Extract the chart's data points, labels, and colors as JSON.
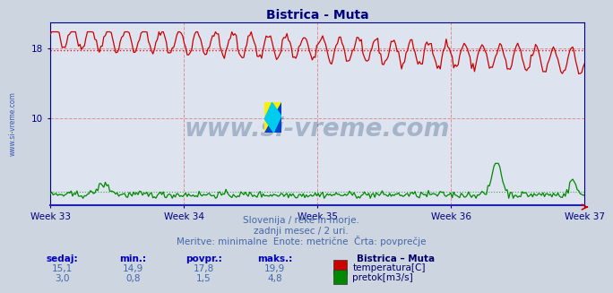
{
  "title": "Bistrica - Muta",
  "title_color": "#000080",
  "bg_color": "#ccd5e0",
  "plot_bg_color": "#dde4f0",
  "grid_color": "#dd8888",
  "avg_temp": 17.8,
  "avg_flow": 1.5,
  "temp_color": "#cc0000",
  "flow_color": "#008800",
  "ylim": [
    0,
    21
  ],
  "n_points": 360,
  "watermark": "www.si-vreme.com",
  "watermark_color": "#1a3a6a",
  "sidebar_text": "www.si-vreme.com",
  "xlabel_weeks": [
    "Week 33",
    "Week 34",
    "Week 35",
    "Week 36",
    "Week 37"
  ],
  "subtitle1": "Slovenija / reke in morje.",
  "subtitle2": "zadnji mesec / 2 uri.",
  "subtitle3": "Meritve: minimalne  Enote: metrične  Črta: povprečje",
  "subtitle_color": "#4466aa",
  "table_label_color": "#0000bb",
  "table_value_color": "#4466aa",
  "table_header_color": "#000066",
  "col_headers": [
    "sedaj:",
    "min.:",
    "povpr.:",
    "maks.:"
  ],
  "station_name": "Bistrica – Muta",
  "temp_row": [
    "15,1",
    "14,9",
    "17,8",
    "19,9"
  ],
  "flow_row": [
    "3,0",
    "0,8",
    "1,5",
    "4,8"
  ],
  "legend_temp": "temperatura[C]",
  "legend_flow": "pretok[m3/s]",
  "logo_colors": {
    "yellow": "#ffee00",
    "blue": "#0044cc",
    "cyan": "#00ccee"
  }
}
